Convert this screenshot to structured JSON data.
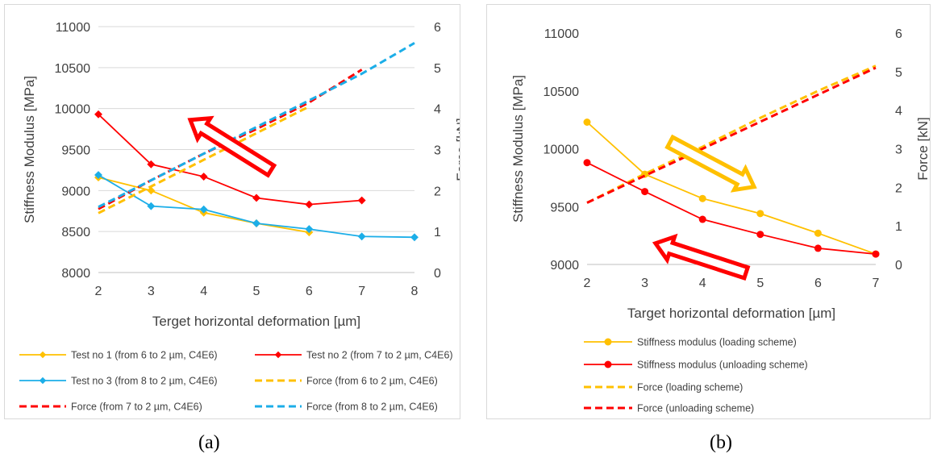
{
  "chart_data": [
    {
      "type": "line",
      "panel_label": "(a)",
      "xlabel": "Terget horizontal deformation [µm]",
      "ylabel": "Stiffness Modulus [MPa]",
      "y2label": "Force [kN]",
      "x_ticks": [
        "2",
        "3",
        "4",
        "5",
        "6",
        "7",
        "8"
      ],
      "xlim": [
        2,
        8
      ],
      "ylim": [
        8000,
        11000
      ],
      "y_ticks": [
        "8000",
        "8500",
        "9000",
        "9500",
        "10000",
        "10500",
        "11000"
      ],
      "y2lim": [
        0,
        6
      ],
      "y2_ticks": [
        "0",
        "1",
        "2",
        "3",
        "4",
        "5",
        "6"
      ],
      "grid": "horizontal",
      "legend_position": "bottom",
      "series": [
        {
          "name": "Test no 1 (from 6 to 2 µm, C4E6)",
          "axis": "left",
          "color": "#FFC000",
          "style": "solid-marker",
          "x": [
            2,
            3,
            4,
            5,
            6
          ],
          "y": [
            9160,
            9000,
            8730,
            8600,
            8490
          ]
        },
        {
          "name": "Test no 2 (from 7 to 2 µm, C4E6)",
          "axis": "left",
          "color": "#FF0000",
          "style": "solid-marker",
          "x": [
            2,
            3,
            4,
            5,
            6,
            7
          ],
          "y": [
            9930,
            9320,
            9170,
            8910,
            8830,
            8880
          ]
        },
        {
          "name": "Test no 3 (from 8 to 2 µm, C4E6)",
          "axis": "left",
          "color": "#1CAEE8",
          "style": "solid-marker",
          "x": [
            2,
            3,
            4,
            5,
            6,
            7,
            8
          ],
          "y": [
            9190,
            8810,
            8770,
            8600,
            8530,
            8440,
            8430
          ]
        },
        {
          "name": "Force (from 6 to 2 µm, C4E6)",
          "axis": "right",
          "color": "#FFC000",
          "style": "dashed",
          "x": [
            2,
            3,
            4,
            5,
            6
          ],
          "y": [
            1.45,
            2.1,
            2.75,
            3.4,
            4.05
          ]
        },
        {
          "name": "Force (from 7 to 2 µm, C4E6)",
          "axis": "right",
          "color": "#FF0000",
          "style": "dashed",
          "x": [
            2,
            3,
            4,
            5,
            6,
            7
          ],
          "y": [
            1.55,
            2.25,
            2.9,
            3.5,
            4.15,
            4.95
          ]
        },
        {
          "name": "Force (from 8 to 2 µm, C4E6)",
          "axis": "right",
          "color": "#1CAEE8",
          "style": "dashed",
          "x": [
            2,
            3,
            4,
            5,
            6,
            7,
            8
          ],
          "y": [
            1.6,
            2.25,
            2.9,
            3.55,
            4.2,
            4.85,
            5.6
          ]
        }
      ],
      "annotations": [
        {
          "type": "arrow",
          "direction": "left",
          "color": "#FF0000"
        }
      ]
    },
    {
      "type": "line",
      "panel_label": "(b)",
      "xlabel": "Target horizontal deformation [µm]",
      "ylabel": "Stiffness Modulus [MPa]",
      "y2label": "Force [kN]",
      "x_ticks": [
        "2",
        "3",
        "4",
        "5",
        "6",
        "7"
      ],
      "xlim": [
        2,
        7
      ],
      "ylim": [
        9000,
        11000
      ],
      "y_ticks": [
        "9000",
        "9500",
        "10000",
        "10500",
        "11000"
      ],
      "y2lim": [
        0,
        6
      ],
      "y2_ticks": [
        "0",
        "1",
        "2",
        "3",
        "4",
        "5",
        "6"
      ],
      "grid": "none",
      "legend_position": "bottom",
      "series": [
        {
          "name": "Stiffness modulus (loading scheme)",
          "axis": "left",
          "color": "#FFC000",
          "style": "solid-marker",
          "x": [
            2,
            3,
            4,
            5,
            6,
            7
          ],
          "y": [
            10230,
            9780,
            9570,
            9440,
            9270,
            9090
          ]
        },
        {
          "name": "Stiffness modulus (unloading scheme)",
          "axis": "left",
          "color": "#FF0000",
          "style": "solid-marker",
          "x": [
            2,
            3,
            4,
            5,
            6,
            7
          ],
          "y": [
            9880,
            9630,
            9390,
            9260,
            9140,
            9090
          ]
        },
        {
          "name": "Force (loading scheme)",
          "axis": "right",
          "color": "#FFC000",
          "style": "dashed",
          "x": [
            2,
            3,
            4,
            5,
            6,
            7
          ],
          "y": [
            1.6,
            2.35,
            3.05,
            3.8,
            4.5,
            5.15
          ]
        },
        {
          "name": "Force (unloading scheme)",
          "axis": "right",
          "color": "#FF0000",
          "style": "dashed",
          "x": [
            2,
            3,
            4,
            5,
            6,
            7
          ],
          "y": [
            1.6,
            2.3,
            3.0,
            3.7,
            4.4,
            5.1
          ]
        }
      ],
      "annotations": [
        {
          "type": "arrow",
          "direction": "right",
          "color": "#FFC000"
        },
        {
          "type": "arrow",
          "direction": "left",
          "color": "#FF0000"
        }
      ]
    }
  ]
}
